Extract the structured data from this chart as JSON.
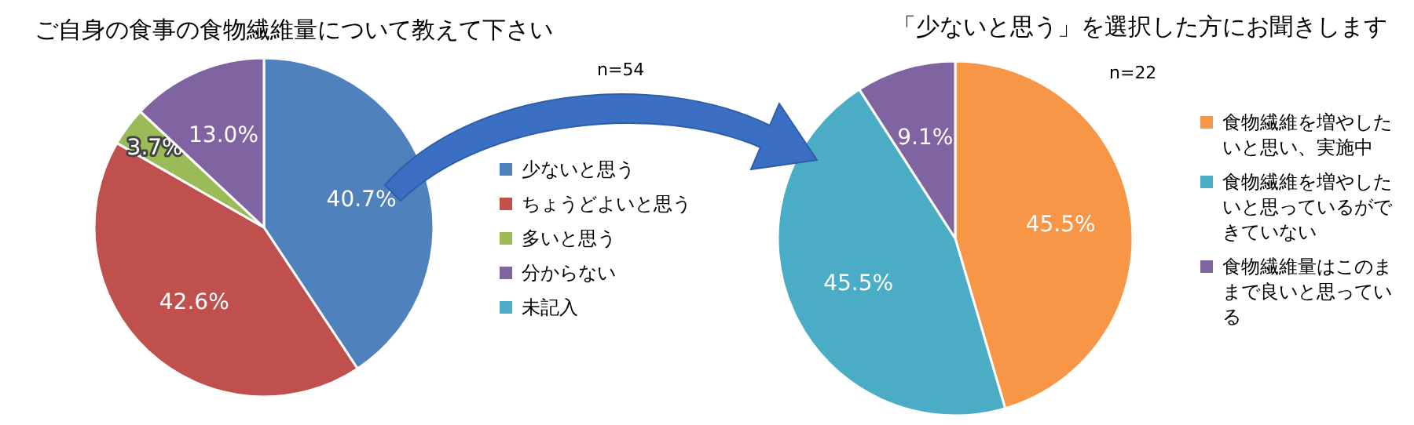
{
  "chart_data": [
    {
      "type": "pie",
      "title": "ご自身の食事の食物繊維量について教えて下さい",
      "subtitle": "n=54",
      "categories": [
        "少ないと思う",
        "ちょうどよいと思う",
        "多いと思う",
        "分からない",
        "未記入"
      ],
      "values": [
        40.7,
        42.6,
        3.7,
        13.0,
        0
      ],
      "colors": [
        "#4f81bd",
        "#c0504d",
        "#9bbb59",
        "#8064a2",
        "#4bacc6"
      ],
      "value_labels": [
        "40.7%",
        "42.6%",
        "3.7%",
        "13.0%",
        null
      ],
      "legend": "right"
    },
    {
      "type": "pie",
      "title": "「少ないと思う」を選択した方にお聞きします",
      "subtitle": "n=22",
      "categories": [
        "食物繊維を増やしたいと思い、実施中",
        "食物繊維を増やしたいと思っているができていない",
        "食物繊維量はこのままで良いと思っている"
      ],
      "values": [
        45.5,
        45.5,
        9.1
      ],
      "colors": [
        "#f79646",
        "#4bacc6",
        "#8064a2"
      ],
      "value_labels": [
        "45.5%",
        "45.5%",
        "9.1%"
      ],
      "legend": "right"
    }
  ]
}
